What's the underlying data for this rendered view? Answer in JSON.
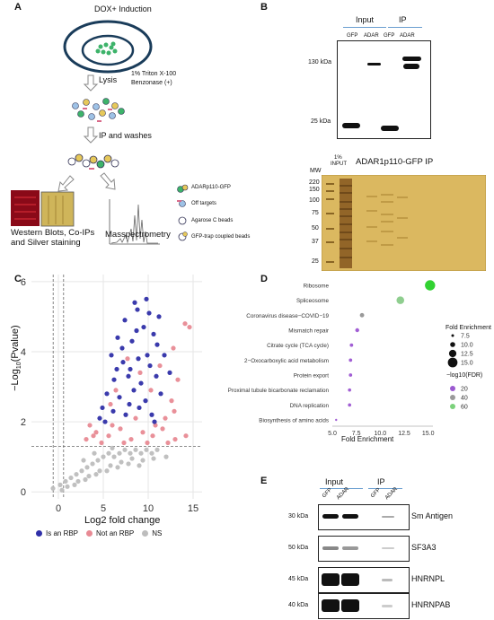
{
  "panels": {
    "A": {
      "label": "A",
      "step1": "DOX+ Induction",
      "step2": "Lysis",
      "lysis_note1": "1% Triton X-100",
      "lysis_note2": "Benzonase (+)",
      "step3": "IP and washes",
      "out_left1": "Western Blots, Co-IPs",
      "out_left2": "and Silver staining",
      "out_right": "Masspectrometry",
      "legend": [
        "ADARp110-GFP",
        "Off targets",
        "Agarose C beads",
        "GFP-trap coupled beads"
      ]
    },
    "B": {
      "label": "B",
      "group_input": "Input",
      "group_ip": "IP",
      "lanes": [
        "GFP",
        "ADAR",
        "GFP",
        "ADAR"
      ],
      "mw_top": [
        "130 kDa",
        "25 kDa"
      ],
      "gel_mw_title": "MW",
      "gel_input_label1": "1%",
      "gel_input_label2": "INPUT",
      "gel_title": "ADAR1p110-GFP IP",
      "gel_mw": [
        "220",
        "150",
        "100",
        "75",
        "50",
        "37",
        "25"
      ]
    },
    "C": {
      "label": "C",
      "xlabel": "Log2 fold change",
      "ylabel": "−Log",
      "ylabel_sub": "10",
      "ylabel_tail": "(Pvalue)",
      "legend": [
        {
          "name": "Is an RBP",
          "color": "#2f2fa8"
        },
        {
          "name": "Not an RBP",
          "color": "#e88a94"
        },
        {
          "name": "NS",
          "color": "#bdbdbd"
        }
      ]
    },
    "D": {
      "label": "D",
      "xlabel": "Fold Enrichment",
      "size_legend_title": "Fold Enrichment",
      "size_legend": [
        "7.5",
        "10.0",
        "12.5",
        "15.0"
      ],
      "color_legend_title": "−log10(FDR)",
      "color_legend": [
        {
          "label": "20",
          "color": "#9b59d0"
        },
        {
          "label": "40",
          "color": "#9a9a9a"
        },
        {
          "label": "60",
          "color": "#7bd17b"
        }
      ]
    },
    "E": {
      "label": "E",
      "group_input": "Input",
      "group_ip": "IP",
      "lanes": [
        "GFP",
        "ADAR",
        "GFP",
        "ADAR"
      ],
      "rows": [
        {
          "mw": "30 kDa",
          "protein": "Sm Antigen"
        },
        {
          "mw": "50 kDa",
          "protein": "SF3A3"
        },
        {
          "mw": "45 kDa",
          "protein": "HNRNPL"
        },
        {
          "mw": "40 kDa",
          "protein": "HNRNPAB"
        }
      ]
    }
  },
  "chart_data": [
    {
      "type": "scatter",
      "title": "",
      "xlabel": "Log2 fold change",
      "ylabel": "−Log10(Pvalue)",
      "xlim": [
        -3,
        16
      ],
      "ylim": [
        -0.2,
        6.2
      ],
      "xticks": [
        0,
        5,
        10,
        15
      ],
      "yticks": [
        0,
        2,
        4,
        6
      ],
      "thresholds": {
        "x": [
          -0.58,
          0.58
        ],
        "y": 1.3
      },
      "grid": true,
      "legend_position": "bottom",
      "series": [
        {
          "name": "Is an RBP",
          "color": "#2f2fa8",
          "points": [
            [
              8.5,
              5.4
            ],
            [
              9.8,
              5.5
            ],
            [
              10.1,
              5.1
            ],
            [
              8.8,
              5.2
            ],
            [
              7.4,
              4.9
            ],
            [
              11.2,
              5.0
            ],
            [
              6.6,
              4.4
            ],
            [
              9.5,
              4.7
            ],
            [
              8.2,
              4.3
            ],
            [
              10.6,
              4.5
            ],
            [
              5.9,
              3.9
            ],
            [
              7.2,
              3.7
            ],
            [
              8.9,
              3.8
            ],
            [
              10.2,
              3.6
            ],
            [
              11.8,
              3.9
            ],
            [
              6.2,
              3.2
            ],
            [
              7.8,
              3.3
            ],
            [
              9.2,
              3.1
            ],
            [
              10.9,
              3.3
            ],
            [
              5.4,
              2.8
            ],
            [
              6.8,
              2.7
            ],
            [
              8.4,
              2.9
            ],
            [
              9.7,
              2.6
            ],
            [
              11.4,
              2.8
            ],
            [
              4.9,
              2.4
            ],
            [
              6.1,
              2.3
            ],
            [
              7.5,
              2.2
            ],
            [
              9.0,
              2.4
            ],
            [
              10.4,
              2.2
            ],
            [
              12.4,
              3.4
            ],
            [
              5.2,
              2.0
            ],
            [
              7.1,
              4.1
            ],
            [
              8.7,
              4.6
            ],
            [
              9.9,
              3.9
            ],
            [
              6.5,
              3.5
            ],
            [
              11.0,
              4.2
            ],
            [
              7.9,
              2.5
            ],
            [
              4.6,
              2.1
            ],
            [
              10.7,
              2.0
            ],
            [
              8.0,
              3.5
            ]
          ]
        },
        {
          "name": "Not an RBP",
          "color": "#e88a94",
          "points": [
            [
              14.1,
              4.8
            ],
            [
              14.6,
              4.7
            ],
            [
              12.8,
              4.1
            ],
            [
              13.3,
              3.2
            ],
            [
              11.9,
              2.1
            ],
            [
              12.6,
              2.6
            ],
            [
              3.5,
              1.9
            ],
            [
              4.2,
              1.7
            ],
            [
              5.6,
              1.6
            ],
            [
              6.9,
              1.8
            ],
            [
              8.1,
              1.5
            ],
            [
              9.4,
              1.7
            ],
            [
              10.5,
              1.6
            ],
            [
              11.6,
              1.8
            ],
            [
              13.0,
              1.5
            ],
            [
              3.1,
              1.5
            ],
            [
              4.8,
              1.4
            ],
            [
              7.3,
              1.4
            ],
            [
              9.9,
              1.4
            ],
            [
              12.2,
              1.4
            ],
            [
              6.4,
              2.9
            ],
            [
              7.7,
              3.8
            ],
            [
              9.1,
              3.4
            ],
            [
              10.3,
              2.9
            ],
            [
              5.8,
              2.5
            ],
            [
              11.3,
              3.6
            ],
            [
              8.6,
              2.1
            ],
            [
              12.9,
              2.3
            ],
            [
              3.9,
              1.6
            ],
            [
              14.2,
              1.6
            ],
            [
              6.0,
              1.9
            ],
            [
              10.8,
              1.9
            ]
          ]
        },
        {
          "name": "NS",
          "color": "#bdbdbd",
          "points": [
            [
              -0.6,
              0.1
            ],
            [
              0.2,
              0.2
            ],
            [
              0.8,
              0.3
            ],
            [
              1.4,
              0.4
            ],
            [
              2.0,
              0.5
            ],
            [
              2.6,
              0.6
            ],
            [
              3.2,
              0.7
            ],
            [
              3.8,
              0.8
            ],
            [
              4.4,
              0.9
            ],
            [
              5.0,
              1.0
            ],
            [
              5.6,
              1.1
            ],
            [
              6.2,
              1.0
            ],
            [
              6.8,
              1.1
            ],
            [
              7.4,
              1.2
            ],
            [
              8.0,
              1.1
            ],
            [
              8.6,
              1.2
            ],
            [
              9.2,
              1.1
            ],
            [
              9.8,
              1.2
            ],
            [
              10.4,
              1.1
            ],
            [
              11.0,
              1.2
            ],
            [
              1.0,
              0.15
            ],
            [
              2.2,
              0.3
            ],
            [
              3.4,
              0.45
            ],
            [
              4.6,
              0.6
            ],
            [
              5.8,
              0.75
            ],
            [
              7.0,
              0.85
            ],
            [
              8.2,
              0.95
            ],
            [
              9.4,
              0.9
            ],
            [
              10.6,
              0.95
            ],
            [
              0.4,
              0.05
            ],
            [
              1.8,
              0.2
            ],
            [
              3.0,
              0.35
            ],
            [
              4.2,
              0.5
            ],
            [
              5.4,
              0.6
            ],
            [
              6.6,
              0.7
            ],
            [
              7.8,
              0.8
            ],
            [
              9.0,
              0.75
            ],
            [
              12.0,
              1.0
            ],
            [
              2.8,
              0.9
            ],
            [
              4.0,
              1.1
            ],
            [
              6.0,
              1.25
            ]
          ]
        }
      ]
    },
    {
      "type": "scatter",
      "title": "",
      "xlabel": "Fold Enrichment",
      "ylabel": "",
      "xlim": [
        5.0,
        15.5
      ],
      "xticks": [
        5.0,
        7.5,
        10.0,
        12.5,
        15.0
      ],
      "categories": [
        "Ribosome",
        "Spliceosome",
        "Coronavirus disease−COVID−19",
        "Mismatch repair",
        "Citrate cycle (TCA cycle)",
        "2−Oxocarboxylic acid metabolism",
        "Protein export",
        "Proximal tubule bicarbonate reclamation",
        "DNA replication",
        "Biosynthesis of amino acids"
      ],
      "fold_enrichment": [
        15.2,
        12.1,
        8.1,
        7.6,
        7.0,
        6.9,
        6.9,
        6.8,
        6.8,
        5.4
      ],
      "neg_log10_fdr": [
        62,
        55,
        40,
        22,
        18,
        18,
        18,
        18,
        18,
        18
      ],
      "colors": [
        "#32d232",
        "#8fce8f",
        "#9a9a9a",
        "#a15ed4",
        "#a15ed4",
        "#a15ed4",
        "#a15ed4",
        "#a15ed4",
        "#a15ed4",
        "#a15ed4"
      ]
    }
  ]
}
